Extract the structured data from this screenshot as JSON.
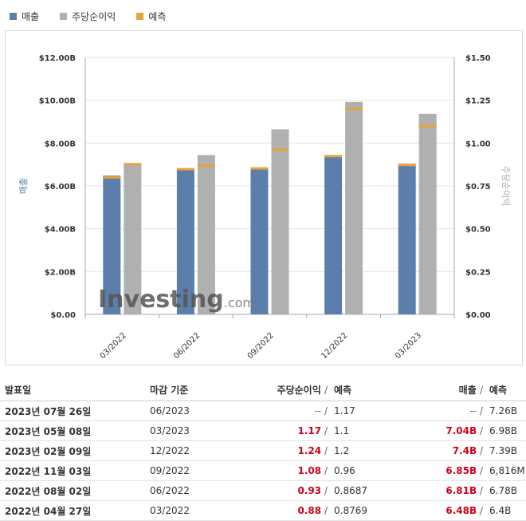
{
  "legend": [
    {
      "label": "매출",
      "color": "#5b7faa"
    },
    {
      "label": "주당순이익",
      "color": "#b0b0b0"
    },
    {
      "label": "예측",
      "color": "#e8a33a"
    }
  ],
  "chart_data": {
    "type": "bar",
    "categories": [
      "03/2022",
      "06/2022",
      "09/2022",
      "12/2022",
      "03/2023"
    ],
    "series": [
      {
        "name": "매출",
        "axis": "left",
        "values": [
          6.48,
          6.81,
          6.85,
          7.4,
          7.04
        ],
        "color": "#5b7faa"
      },
      {
        "name": "주당순이익",
        "axis": "right",
        "values": [
          0.88,
          0.93,
          1.08,
          1.24,
          1.17
        ],
        "color": "#b0b0b0"
      }
    ],
    "forecasts": {
      "매출": [
        6.4,
        6.78,
        6.816,
        7.39,
        6.98
      ],
      "주당순이익": [
        0.8769,
        0.8687,
        0.96,
        1.2,
        1.1
      ]
    },
    "left_axis": {
      "label": "매출",
      "ylim": [
        0,
        12
      ],
      "ticks": [
        "$0.00",
        "$2.00B",
        "$4.00B",
        "$6.00B",
        "$8.00B",
        "$10.00B",
        "$12.00B"
      ]
    },
    "right_axis": {
      "label": "주당순이익",
      "ylim": [
        0,
        1.5
      ],
      "ticks": [
        "$0.00",
        "$0.25",
        "$0.50",
        "$0.75",
        "$1.00",
        "$1.25",
        "$1.50"
      ]
    },
    "watermark": {
      "brand": "Investing",
      "suffix": ".com"
    }
  },
  "table": {
    "headers": {
      "date": "발표일",
      "period": "마감 기준",
      "eps": "주당순이익",
      "eps_forecast": "예측",
      "revenue": "매출",
      "revenue_forecast": "예측",
      "slash": "/"
    },
    "rows": [
      {
        "date": "2023년 07월 26일",
        "period": "06/2023",
        "eps": "--",
        "eps_forecast": "1.17",
        "revenue": "--",
        "revenue_forecast": "7.26B",
        "color": "grey"
      },
      {
        "date": "2023년 05월 08일",
        "period": "03/2023",
        "eps": "1.17",
        "eps_forecast": "1.1",
        "revenue": "7.04B",
        "revenue_forecast": "6.98B",
        "color": "red"
      },
      {
        "date": "2023년 02월 09일",
        "period": "12/2022",
        "eps": "1.24",
        "eps_forecast": "1.2",
        "revenue": "7.4B",
        "revenue_forecast": "7.39B",
        "color": "red"
      },
      {
        "date": "2022년 11월 03일",
        "period": "09/2022",
        "eps": "1.08",
        "eps_forecast": "0.96",
        "revenue": "6.85B",
        "revenue_forecast": "6,816M",
        "color": "red"
      },
      {
        "date": "2022년 08월 02일",
        "period": "06/2022",
        "eps": "0.93",
        "eps_forecast": "0.8687",
        "revenue": "6.81B",
        "revenue_forecast": "6.78B",
        "color": "red"
      },
      {
        "date": "2022년 04월 27일",
        "period": "03/2022",
        "eps": "0.88",
        "eps_forecast": "0.8769",
        "revenue": "6.48B",
        "revenue_forecast": "6.4B",
        "color": "red"
      }
    ]
  }
}
